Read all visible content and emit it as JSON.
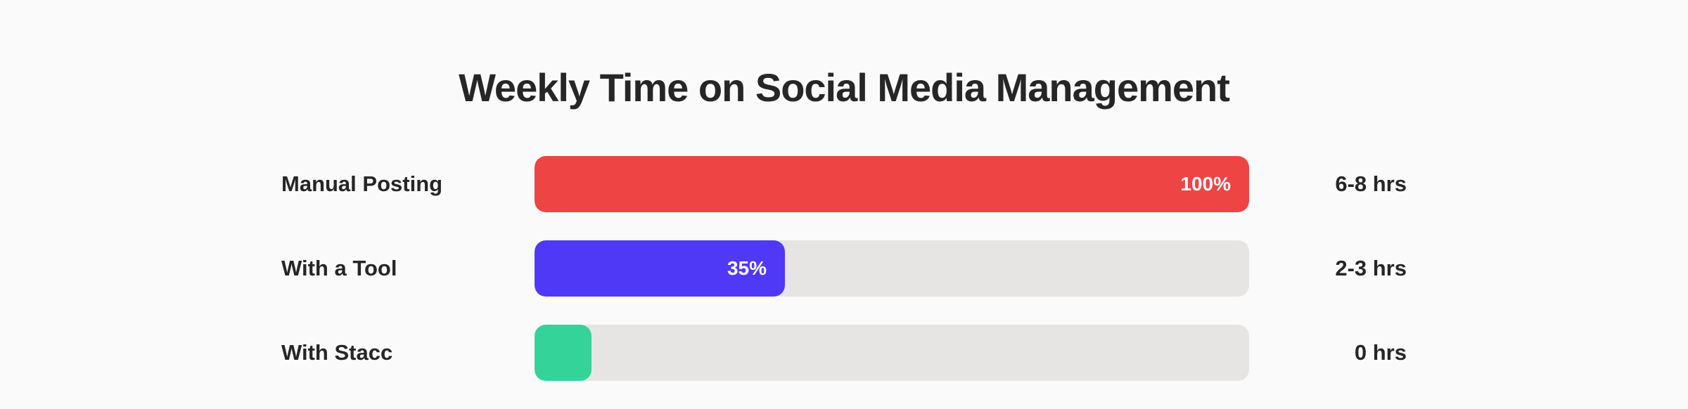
{
  "chart_data": {
    "type": "bar",
    "orientation": "horizontal",
    "title": "Weekly Time on Social Media Management",
    "categories": [
      "Manual Posting",
      "With a Tool",
      "With Stacc"
    ],
    "values": [
      100,
      35,
      8
    ],
    "value_labels": [
      "100%",
      "35%",
      ""
    ],
    "hours_labels": [
      "6-8 hrs",
      "2-3 hrs",
      "0 hrs"
    ],
    "colors": [
      "#ef4444",
      "#4f39f6",
      "#34d399"
    ],
    "track_color": "#e7e5e4",
    "xlim": [
      0,
      100
    ],
    "grid": false,
    "legend": "none"
  }
}
